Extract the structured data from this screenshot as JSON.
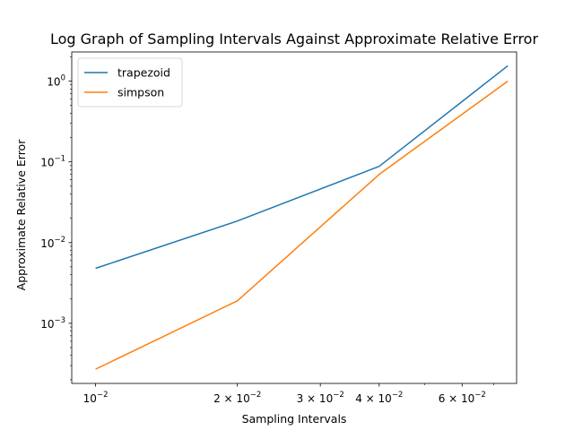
{
  "chart_data": {
    "type": "line",
    "title": "Log Graph of Sampling Intervals Against Approximate Relative Error",
    "xlabel": "Sampling Intervals",
    "ylabel": "Approximate Relative Error",
    "xscale": "log",
    "yscale": "log",
    "xlim": [
      0.0089,
      0.0783
    ],
    "ylim": [
      0.00018,
      2.3
    ],
    "grid": false,
    "legend_position": "top-left",
    "x": [
      0.01,
      0.02,
      0.04,
      0.075
    ],
    "x_major_ticks": [
      {
        "value": 0.01,
        "base": "10",
        "exp": "−2"
      },
      {
        "value": 0.02,
        "base": "2 × 10",
        "exp": "−2"
      },
      {
        "value": 0.03,
        "base": "3 × 10",
        "exp": "−2"
      },
      {
        "value": 0.04,
        "base": "4 × 10",
        "exp": "−2"
      },
      {
        "value": 0.06,
        "base": "6 × 10",
        "exp": "−2"
      }
    ],
    "x_minor_ticks": [
      0.05,
      0.07
    ],
    "y_major_ticks": [
      {
        "value": 0.001,
        "base": "10",
        "exp": "−3"
      },
      {
        "value": 0.01,
        "base": "10",
        "exp": "−2"
      },
      {
        "value": 0.1,
        "base": "10",
        "exp": "−1"
      },
      {
        "value": 1,
        "base": "10",
        "exp": "0"
      }
    ],
    "series": [
      {
        "name": "trapezoid",
        "color": "#1f77b4",
        "values": [
          0.0048,
          0.0185,
          0.088,
          1.55
        ]
      },
      {
        "name": "simpson",
        "color": "#ff7f0e",
        "values": [
          0.00027,
          0.0019,
          0.07,
          1.0
        ]
      }
    ]
  }
}
